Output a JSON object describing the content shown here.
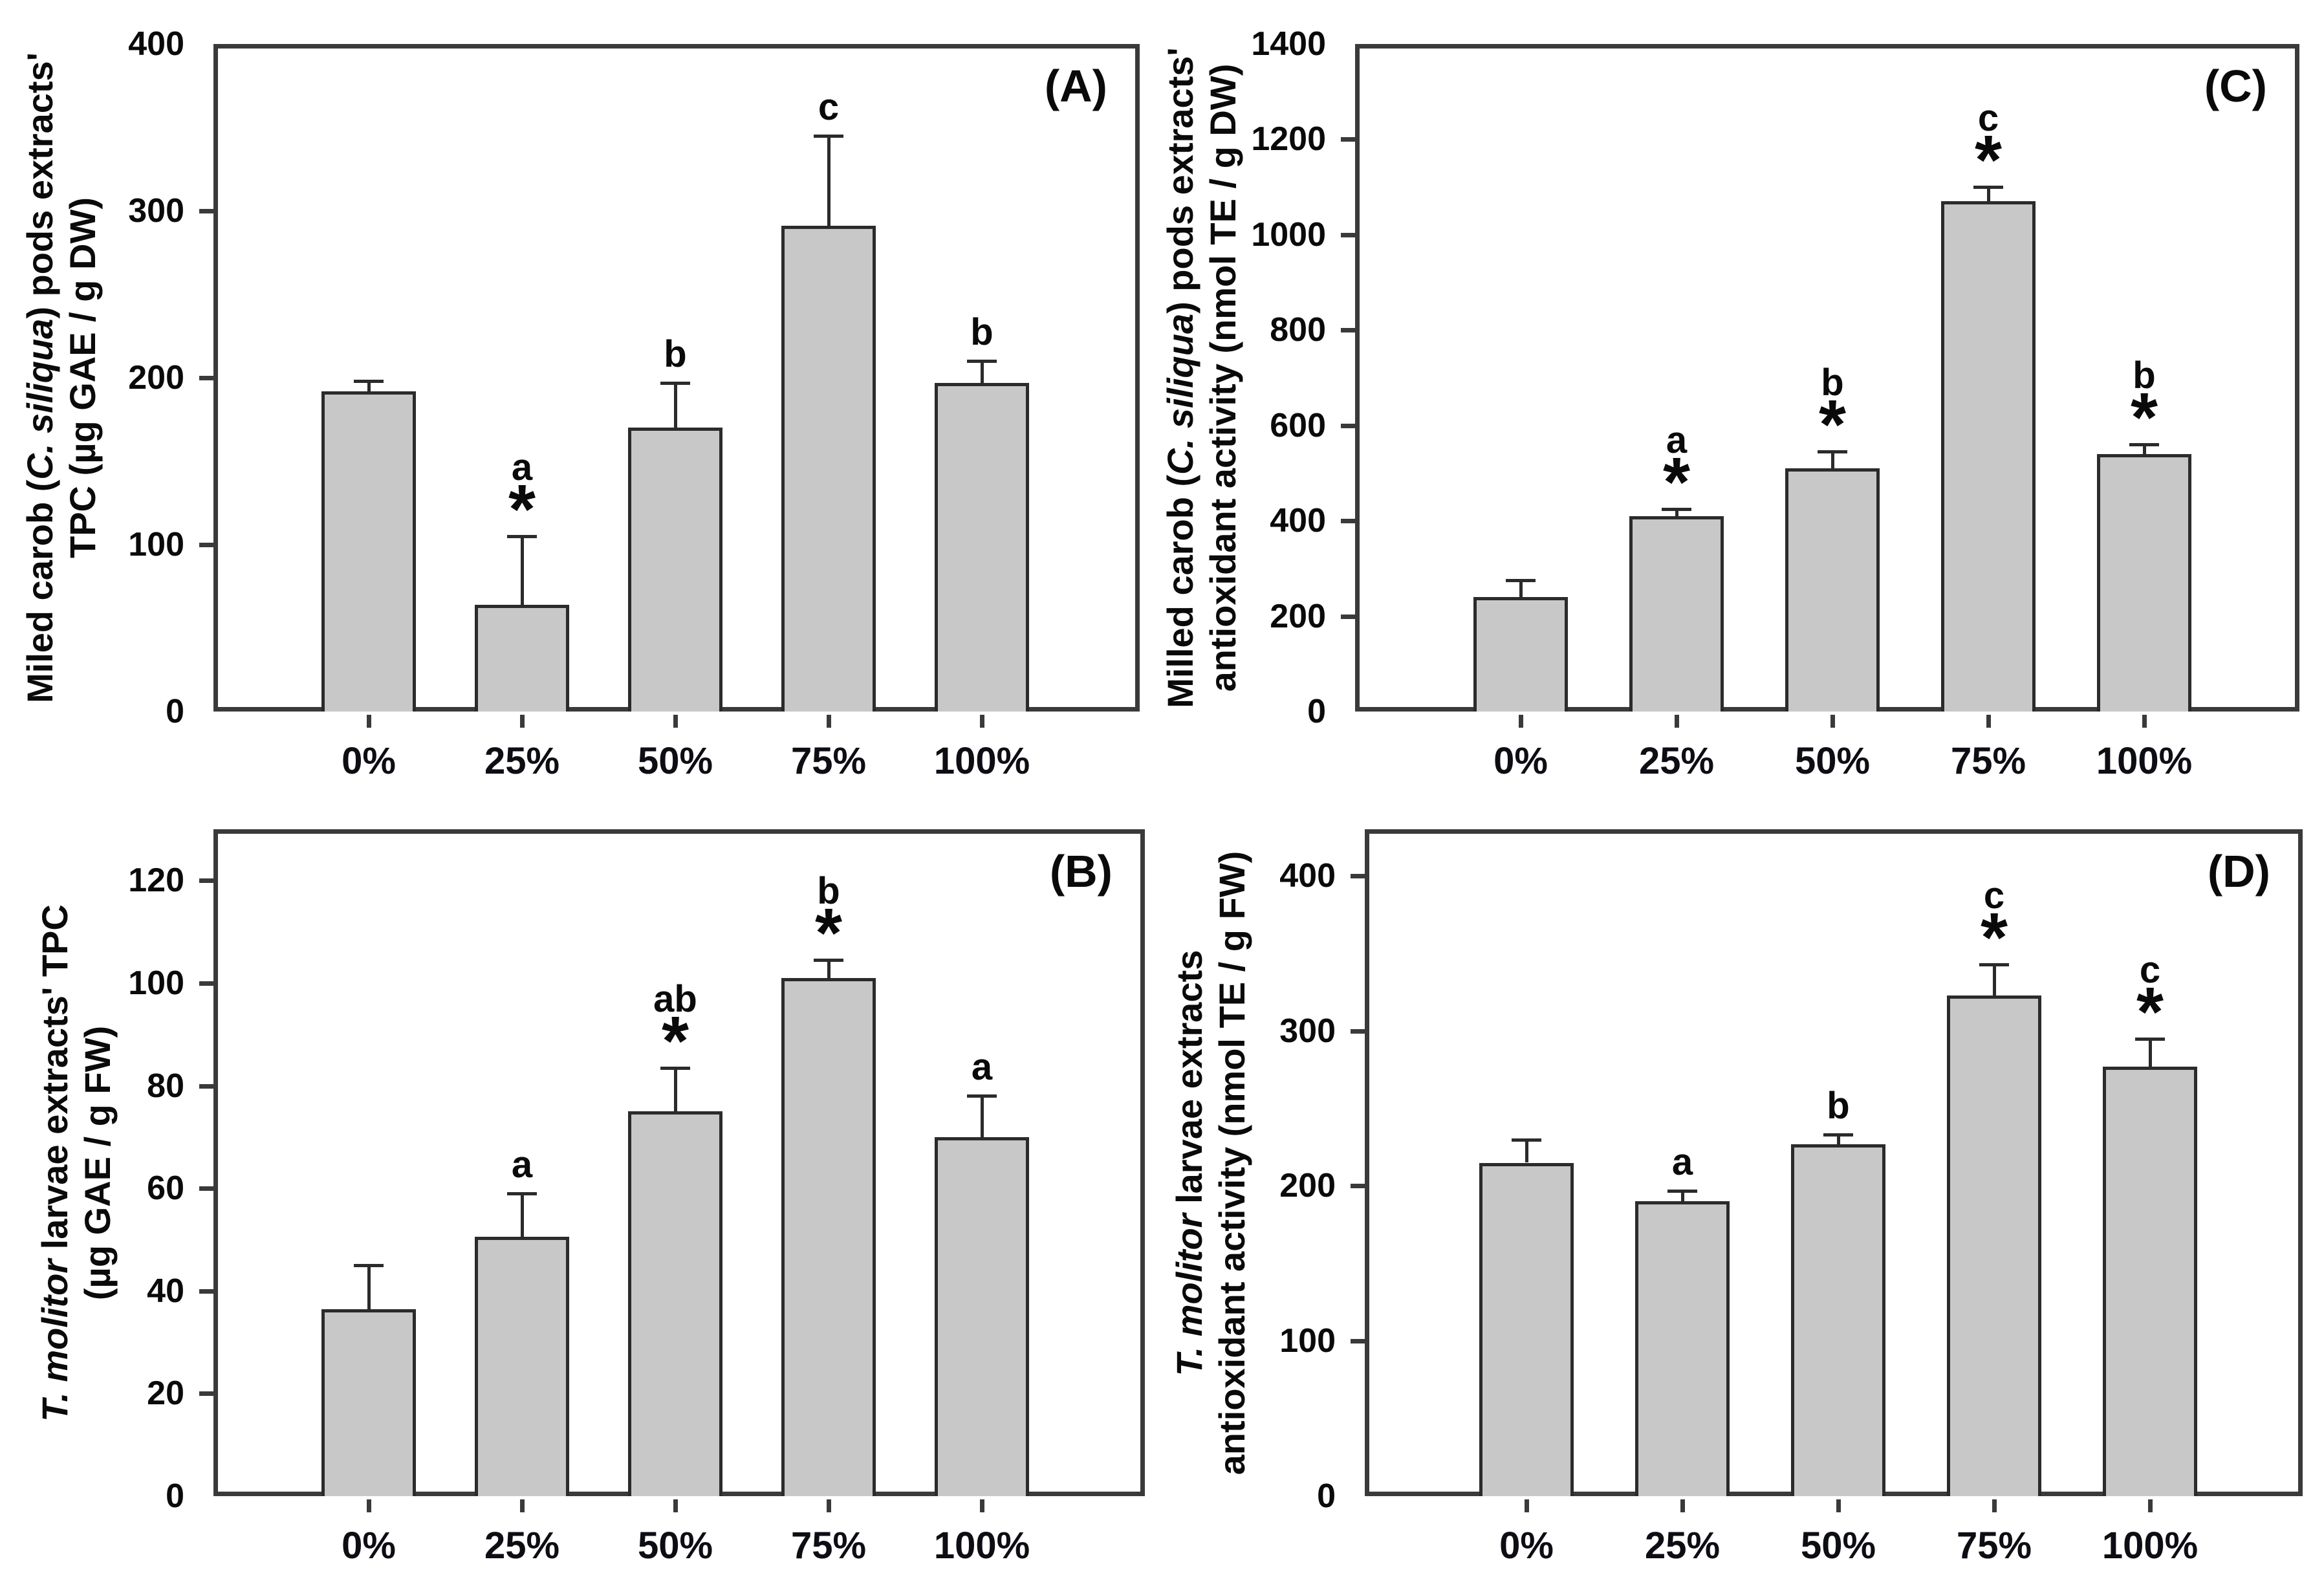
{
  "figure_title": "Four-panel bar figure: TPC and antioxidant activity of carob pod and T. molitor larvae extracts",
  "colors": {
    "background": "#ffffff",
    "bar_fill": "#c8c8c8",
    "bar_border": "#2b2b2b",
    "axis": "#3a3a3a",
    "text": "#0a0a0a"
  },
  "chart_data": [
    {
      "type": "bar",
      "panel_letter": "(A)",
      "position": "top-left",
      "ylabel_lines": [
        [
          {
            "t": "Miled carob ("
          },
          {
            "t": "C. siliqua",
            "i": true
          },
          {
            "t": ") pods extracts'"
          }
        ],
        [
          {
            "t": "TPC (µg GAE / g DW)"
          }
        ]
      ],
      "categories": [
        "0%",
        "25%",
        "50%",
        "75%",
        "100%"
      ],
      "values": [
        192,
        64,
        170,
        291,
        197
      ],
      "errors_upper": [
        6,
        41,
        27,
        54,
        13
      ],
      "sig_letters": [
        "",
        "a",
        "b",
        "c",
        "b"
      ],
      "sig_stars": [
        false,
        true,
        false,
        false,
        false
      ],
      "ylim": [
        0,
        400
      ],
      "yticks": [
        0,
        100,
        200,
        300,
        400
      ],
      "grid": false,
      "legend": "none"
    },
    {
      "type": "bar",
      "panel_letter": "(C)",
      "position": "top-right",
      "ylabel_lines": [
        [
          {
            "t": "Milled carob ("
          },
          {
            "t": "C. siliqua",
            "i": true
          },
          {
            "t": ") pods extracts'"
          }
        ],
        [
          {
            "t": "antioxidant activity (nmol TE / g DW)"
          }
        ]
      ],
      "categories": [
        "0%",
        "25%",
        "50%",
        "75%",
        "100%"
      ],
      "values": [
        240,
        410,
        510,
        1070,
        540
      ],
      "errors_upper": [
        35,
        15,
        35,
        30,
        20
      ],
      "sig_letters": [
        "",
        "a",
        "b",
        "c",
        "b"
      ],
      "sig_stars": [
        false,
        true,
        true,
        true,
        true
      ],
      "ylim": [
        0,
        1400
      ],
      "yticks": [
        0,
        200,
        400,
        600,
        800,
        1000,
        1200,
        1400
      ],
      "grid": false,
      "legend": "none"
    },
    {
      "type": "bar",
      "panel_letter": "(B)",
      "position": "bottom-left",
      "ylabel_lines": [
        [
          {
            "t": "T. molitor",
            "i": true
          },
          {
            "t": " larvae extracts' TPC"
          }
        ],
        [
          {
            "t": "(µg GAE / g FW)"
          }
        ]
      ],
      "categories": [
        "0%",
        "25%",
        "50%",
        "75%",
        "100%"
      ],
      "values": [
        36.5,
        50.5,
        75,
        101,
        70
      ],
      "errors_upper": [
        8.5,
        8.5,
        8.5,
        3.5,
        8
      ],
      "sig_letters": [
        "",
        "a",
        "ab",
        "b",
        "a"
      ],
      "sig_stars": [
        false,
        false,
        true,
        true,
        false
      ],
      "ylim": [
        0,
        130
      ],
      "yticks": [
        0,
        20,
        40,
        60,
        80,
        100,
        120
      ],
      "grid": false,
      "legend": "none"
    },
    {
      "type": "bar",
      "panel_letter": "(D)",
      "position": "bottom-right",
      "ylabel_lines": [
        [
          {
            "t": "T. molitor",
            "i": true
          },
          {
            "t": " larvae extracts"
          }
        ],
        [
          {
            "t": "antioxidant activity (nmol TE / g FW)"
          }
        ]
      ],
      "categories": [
        "0%",
        "25%",
        "50%",
        "75%",
        "100%"
      ],
      "values": [
        215,
        190,
        227,
        323,
        277
      ],
      "errors_upper": [
        15,
        7,
        6,
        20,
        18
      ],
      "sig_letters": [
        "",
        "a",
        "b",
        "c",
        "c"
      ],
      "sig_stars": [
        false,
        false,
        false,
        true,
        true
      ],
      "ylim": [
        0,
        430
      ],
      "yticks": [
        0,
        100,
        200,
        300,
        400
      ],
      "grid": false,
      "legend": "none"
    }
  ]
}
